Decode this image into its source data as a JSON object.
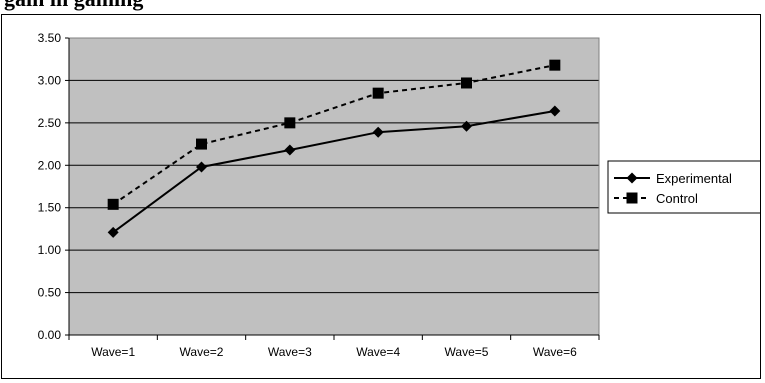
{
  "title": "gain in gaming",
  "colors": {
    "plot_bg": "#c0c0c0",
    "grid": "#000000",
    "series": "#000000"
  },
  "chart_data": {
    "type": "line",
    "categories": [
      "Wave=1",
      "Wave=2",
      "Wave=3",
      "Wave=4",
      "Wave=5",
      "Wave=6"
    ],
    "ylim": [
      0,
      3.5
    ],
    "yticks": [
      "0.00",
      "0.50",
      "1.00",
      "1.50",
      "2.00",
      "2.50",
      "3.00",
      "3.50"
    ],
    "grid": true,
    "legend_position": "right",
    "series": [
      {
        "name": "Experimental",
        "values": [
          1.21,
          1.98,
          2.18,
          2.39,
          2.46,
          2.64
        ],
        "marker": "diamond",
        "line": "solid"
      },
      {
        "name": "Control",
        "values": [
          1.54,
          2.25,
          2.5,
          2.85,
          2.97,
          3.18
        ],
        "marker": "square",
        "line": "dashed"
      }
    ]
  }
}
